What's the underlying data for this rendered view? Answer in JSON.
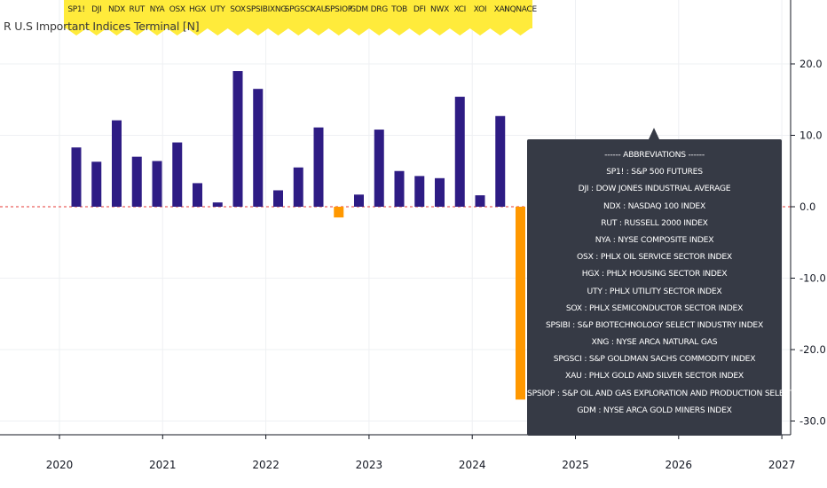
{
  "chart_data": {
    "type": "bar",
    "title": "R U.S Important Indices Terminal [N]",
    "categories": [
      "SP1!",
      "DJI",
      "NDX",
      "RUT",
      "NYA",
      "OSX",
      "HGX",
      "UTY",
      "SOX",
      "SPSIBI",
      "XNG",
      "SPGSCI",
      "XAU",
      "SPSIOP",
      "GDM",
      "DRG",
      "TOB",
      "DFI",
      "NWX",
      "XCI",
      "XOI",
      "XAI",
      "NQNACE"
    ],
    "values": [
      8.3,
      6.3,
      12.1,
      7.0,
      6.4,
      9.0,
      3.3,
      0.6,
      19.0,
      16.5,
      2.3,
      5.5,
      11.1,
      -1.5,
      1.7,
      10.8,
      5.0,
      4.3,
      4.0,
      15.4,
      1.6,
      12.7,
      -27.0
    ],
    "colors": {
      "positive": "#2e1c84",
      "negative": "#ff9800",
      "zero_line": "#e53935",
      "panel": "#ffeb3b",
      "legend_bg": "#363a45"
    },
    "ylim": [
      -32,
      28
    ],
    "y_ticks": [
      "20.0",
      "10.0",
      "0.0",
      "-10.0",
      "-20.0",
      "-30.0"
    ],
    "x_ticks": [
      "2020",
      "2021",
      "2022",
      "2023",
      "2024",
      "2025",
      "2026",
      "2027"
    ],
    "grid": true,
    "abbreviations": {
      "title": "------ ABBREVIATIONS ------",
      "items": [
        {
          "code": "SP1! :",
          "name": "S&P 500 FUTURES"
        },
        {
          "code": "DJI :",
          "name": "DOW JONES INDUSTRIAL AVERAGE"
        },
        {
          "code": "NDX :",
          "name": "NASDAQ 100 INDEX"
        },
        {
          "code": "RUT :",
          "name": "RUSSELL 2000 INDEX"
        },
        {
          "code": "NYA :",
          "name": "NYSE COMPOSITE INDEX"
        },
        {
          "code": "OSX :",
          "name": "PHLX OIL SERVICE SECTOR INDEX"
        },
        {
          "code": "HGX :",
          "name": "PHLX HOUSING SECTOR INDEX"
        },
        {
          "code": "UTY :",
          "name": "PHLX UTILITY SECTOR INDEX"
        },
        {
          "code": "SOX :",
          "name": "PHLX SEMICONDUCTOR SECTOR INDEX"
        },
        {
          "code": "SPSIBI :",
          "name": "S&P BIOTECHNOLOGY SELECT INDUSTRY INDEX"
        },
        {
          "code": "XNG :",
          "name": "NYSE ARCA NATURAL GAS"
        },
        {
          "code": "SPGSCI :",
          "name": "S&P GOLDMAN SACHS COMMODITY INDEX"
        },
        {
          "code": "XAU :",
          "name": "PHLX GOLD AND SILVER SECTOR INDEX"
        },
        {
          "code": "SPSIOP :",
          "name": "S&P OIL AND GAS EXPLORATION AND PRODUCTION SELECT INDUSTRY INDEX"
        },
        {
          "code": "GDM :",
          "name": "NYSE ARCA GOLD MINERS INDEX"
        }
      ]
    }
  }
}
